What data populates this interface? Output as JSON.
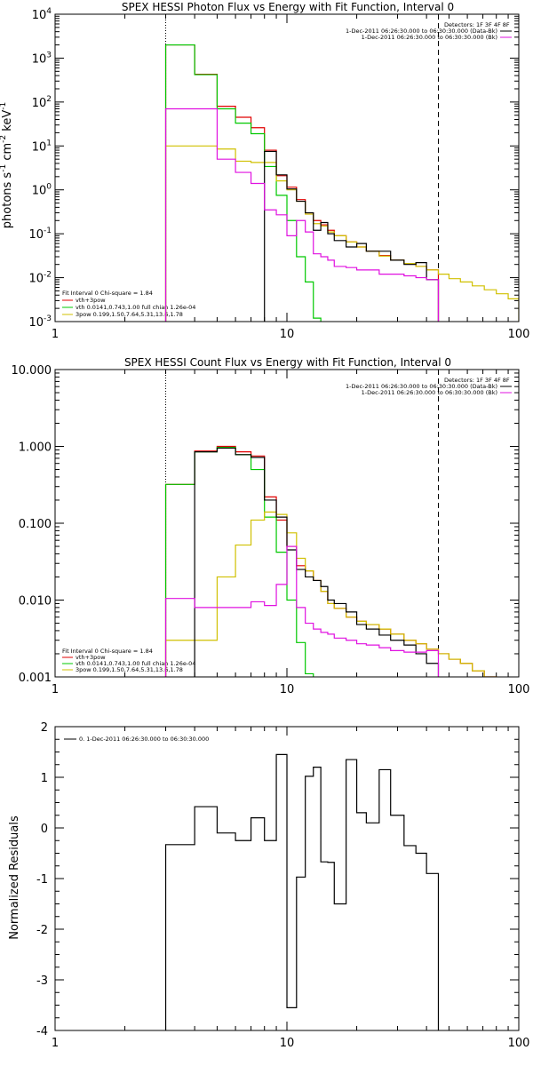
{
  "chart_data": [
    {
      "type": "line",
      "title": "SPEX HESSI Photon Flux vs Energy with Fit Function, Interval 0",
      "ylabel_parts": [
        "photons s",
        "-1",
        " cm",
        "-2",
        " keV",
        "-1"
      ],
      "xlim": [
        1,
        100
      ],
      "ylim": [
        0.001,
        10000
      ],
      "x_scale": "log",
      "y_scale": "log",
      "xticks": [
        "1",
        "10",
        "100"
      ],
      "yticks": [
        {
          "base": "10",
          "exp": "-3",
          "value": 0.001
        },
        {
          "base": "10",
          "exp": "-2",
          "value": 0.01
        },
        {
          "base": "10",
          "exp": "-1",
          "value": 0.1
        },
        {
          "base": "10",
          "exp": "0",
          "value": 1
        },
        {
          "base": "10",
          "exp": "1",
          "value": 10
        },
        {
          "base": "10",
          "exp": "2",
          "value": 100
        },
        {
          "base": "10",
          "exp": "3",
          "value": 1000
        },
        {
          "base": "10",
          "exp": "4",
          "value": 10000
        }
      ],
      "vlines": [
        {
          "x": 3,
          "style": "dotted"
        },
        {
          "x": 45,
          "style": "dashed"
        }
      ],
      "legend_top_right": {
        "header": "Detectors: 1F 3F 4F 8F",
        "entries": [
          {
            "text": "1-Dec-2011 06:26:30.000 to 06:30:30.000 (Data-Bk)",
            "color": "#000000"
          },
          {
            "text": "1-Dec-2011 06:26:30.000 to 06:30:30.000 (Bk)",
            "color": "#e010e0"
          }
        ]
      },
      "legend_bottom_left": {
        "header": "Fit Interval 0   Chi-square = 1.84",
        "entries": [
          {
            "text": "vth+3pow",
            "color": "#e00000"
          },
          {
            "text": "vth 0.0141,0.743,1.00  full chian 1.26e-04",
            "color": "#00c800"
          },
          {
            "text": "3pow 0.199,1.50,7.64,5.31,13.6,1.78",
            "color": "#d0c000"
          }
        ]
      },
      "series": [
        {
          "name": "vth+3pow",
          "color": "#e00000",
          "edges": [
            3,
            4,
            5,
            6,
            7,
            8,
            9,
            10,
            11,
            12,
            13,
            14,
            15,
            16,
            18,
            20,
            22,
            25,
            28,
            32,
            36,
            40,
            45
          ],
          "values": [
            2000,
            430,
            80,
            45,
            26,
            8.0,
            2.1,
            1.15,
            0.6,
            0.3,
            0.2,
            0.16,
            0.12,
            0.09,
            0.065,
            0.05,
            0.04,
            0.032,
            0.025,
            0.021,
            0.018,
            0.015
          ]
        },
        {
          "name": "vth",
          "color": "#00c800",
          "edges": [
            3,
            4,
            5,
            6,
            7,
            8,
            9,
            10,
            11,
            12,
            13,
            14
          ],
          "values": [
            2000,
            420,
            70,
            33,
            19,
            3.4,
            0.75,
            0.2,
            0.03,
            0.008,
            0.0012
          ]
        },
        {
          "name": "3pow",
          "color": "#d0c000",
          "edges": [
            3,
            4,
            5,
            6,
            7,
            8,
            9,
            10,
            11,
            12,
            13,
            14,
            15,
            16,
            18,
            20,
            22,
            25,
            28,
            32,
            36,
            40,
            45,
            50,
            56,
            63,
            71,
            80,
            90,
            100
          ],
          "values": [
            10,
            10,
            8.5,
            4.5,
            4.2,
            4.2,
            1.6,
            1.0,
            0.55,
            0.28,
            0.17,
            0.15,
            0.11,
            0.09,
            0.065,
            0.05,
            0.04,
            0.031,
            0.025,
            0.021,
            0.018,
            0.015,
            0.012,
            0.0095,
            0.008,
            0.0065,
            0.0053,
            0.0043,
            0.0033
          ]
        },
        {
          "name": "Data-Bk",
          "color": "#000000",
          "edges": [
            8,
            9,
            10,
            11,
            12,
            13,
            14,
            15,
            16,
            18,
            20,
            22,
            25,
            28,
            32,
            36,
            40,
            45
          ],
          "values": [
            7.5,
            2.2,
            1.05,
            0.55,
            0.3,
            0.12,
            0.18,
            0.1,
            0.07,
            0.05,
            0.06,
            0.04,
            0.04,
            0.025,
            0.02,
            0.022,
            0.009
          ]
        },
        {
          "name": "Bk",
          "color": "#e010e0",
          "edges": [
            3,
            4,
            5,
            6,
            7,
            8,
            9,
            10,
            11,
            12,
            13,
            14,
            15,
            16,
            18,
            20,
            22,
            25,
            28,
            32,
            36,
            40,
            45
          ],
          "values": [
            70,
            70,
            5,
            2.5,
            1.4,
            0.35,
            0.27,
            0.09,
            0.2,
            0.11,
            0.035,
            0.03,
            0.025,
            0.018,
            0.017,
            0.015,
            0.015,
            0.012,
            0.012,
            0.011,
            0.01,
            0.009
          ]
        }
      ]
    },
    {
      "type": "line",
      "title": "SPEX HESSI Count Flux vs Energy with Fit Function, Interval 0",
      "xlim": [
        1,
        100
      ],
      "ylim": [
        0.001,
        10
      ],
      "x_scale": "log",
      "y_scale": "log",
      "xticks": [
        "1",
        "10",
        "100"
      ],
      "yticks": [
        {
          "label": "0.001",
          "value": 0.001
        },
        {
          "label": "0.010",
          "value": 0.01
        },
        {
          "label": "0.100",
          "value": 0.1
        },
        {
          "label": "1.000",
          "value": 1
        },
        {
          "label": "10.000",
          "value": 10
        }
      ],
      "vlines": [
        {
          "x": 3,
          "style": "dotted"
        },
        {
          "x": 45,
          "style": "dashed"
        }
      ],
      "legend_top_right": {
        "header": "Detectors: 1F 3F 4F 8F",
        "entries": [
          {
            "text": "1-Dec-2011 06:26:30.000 to 06:30:30.000 (Data-Bk)",
            "color": "#000000"
          },
          {
            "text": "1-Dec-2011 06:26:30.000 to 06:30:30.000 (Bk)",
            "color": "#e010e0"
          }
        ]
      },
      "legend_bottom_left": {
        "header": "Fit Interval 0   Chi-square = 1.84",
        "entries": [
          {
            "text": "vth+3pow",
            "color": "#e00000"
          },
          {
            "text": "vth 0.0141,0.743,1.00  full chian 1.26e-04",
            "color": "#00c800"
          },
          {
            "text": "3pow 0.199,1.50,7.64,5.31,13.6,1.78",
            "color": "#d0c000"
          }
        ]
      },
      "series": [
        {
          "name": "vth+3pow",
          "color": "#e00000",
          "edges": [
            3,
            4,
            5,
            6,
            7,
            8,
            9,
            10,
            11,
            12,
            13,
            14,
            15,
            16,
            18,
            20,
            22,
            25,
            28,
            32,
            36,
            40,
            45,
            50,
            56,
            63,
            71,
            80
          ],
          "values": [
            0.32,
            0.87,
            1.0,
            0.85,
            0.75,
            0.22,
            0.11,
            0.05,
            0.028,
            0.024,
            0.018,
            0.013,
            0.009,
            0.0078,
            0.006,
            0.0053,
            0.0048,
            0.0042,
            0.0036,
            0.003,
            0.0027,
            0.0023,
            0.002,
            0.0017,
            0.0015,
            0.0012,
            0.001
          ]
        },
        {
          "name": "vth",
          "color": "#00c800",
          "edges": [
            3,
            4,
            5,
            6,
            7,
            8,
            9,
            10,
            11,
            12,
            13
          ],
          "values": [
            0.32,
            0.85,
            0.97,
            0.78,
            0.5,
            0.12,
            0.042,
            0.01,
            0.0028,
            0.0011
          ]
        },
        {
          "name": "3pow",
          "color": "#d0c000",
          "edges": [
            3,
            4,
            5,
            6,
            7,
            8,
            9,
            10,
            11,
            12,
            13,
            14,
            15,
            16,
            18,
            20,
            22,
            25,
            28,
            32,
            36,
            40,
            45,
            50,
            56,
            63,
            71,
            80
          ],
          "values": [
            0.003,
            0.003,
            0.02,
            0.052,
            0.11,
            0.14,
            0.13,
            0.075,
            0.035,
            0.024,
            0.018,
            0.013,
            0.009,
            0.0078,
            0.006,
            0.0053,
            0.0048,
            0.0042,
            0.0036,
            0.003,
            0.0027,
            0.0023,
            0.002,
            0.0017,
            0.0015,
            0.0012,
            0.001
          ]
        },
        {
          "name": "Data-Bk",
          "color": "#000000",
          "edges": [
            4,
            5,
            6,
            7,
            8,
            9,
            10,
            11,
            12,
            13,
            14,
            15,
            16,
            18,
            20,
            22,
            25,
            28,
            32,
            36,
            40,
            45
          ],
          "values": [
            0.85,
            0.95,
            0.78,
            0.72,
            0.2,
            0.12,
            0.045,
            0.025,
            0.02,
            0.018,
            0.015,
            0.01,
            0.009,
            0.007,
            0.0048,
            0.0042,
            0.0035,
            0.003,
            0.0026,
            0.002,
            0.0015
          ]
        },
        {
          "name": "Bk",
          "color": "#e010e0",
          "edges": [
            3,
            4,
            5,
            6,
            7,
            8,
            9,
            10,
            11,
            12,
            13,
            14,
            15,
            16,
            18,
            20,
            22,
            25,
            28,
            32,
            36,
            40,
            45
          ],
          "values": [
            0.0105,
            0.008,
            0.008,
            0.008,
            0.0095,
            0.0085,
            0.016,
            0.05,
            0.008,
            0.005,
            0.0042,
            0.0038,
            0.0036,
            0.0032,
            0.003,
            0.0027,
            0.0026,
            0.0024,
            0.0022,
            0.0021,
            0.0021,
            0.0022
          ]
        }
      ]
    },
    {
      "type": "line",
      "ylabel": "Normalized Residuals",
      "xlim": [
        1,
        100
      ],
      "ylim": [
        -4,
        2
      ],
      "x_scale": "log",
      "y_scale": "linear",
      "xticks": [
        "1",
        "10",
        "100"
      ],
      "yticks": [
        "-4",
        "-3",
        "-2",
        "-1",
        "0",
        "1",
        "2"
      ],
      "legend_top_left": {
        "entries": [
          {
            "text": "0. 1-Dec-2011 06:26:30.000 to 06:30:30.000",
            "color": "#000000"
          }
        ]
      },
      "series": [
        {
          "name": "0. 1-Dec-2011 06:26:30.000 to 06:30:30.000",
          "color": "#000000",
          "edges": [
            3,
            4,
            5,
            6,
            7,
            8,
            9,
            10,
            11,
            12,
            13,
            14,
            15,
            16,
            18,
            20,
            22,
            25,
            28,
            32,
            36,
            40,
            45
          ],
          "values": [
            -0.33,
            0.42,
            -0.1,
            -0.25,
            0.2,
            -0.25,
            1.45,
            -3.55,
            -0.97,
            1.02,
            1.2,
            -0.67,
            -0.68,
            -1.5,
            1.35,
            0.3,
            0.1,
            1.15,
            0.25,
            -0.35,
            -0.5,
            -0.9
          ]
        }
      ]
    }
  ]
}
